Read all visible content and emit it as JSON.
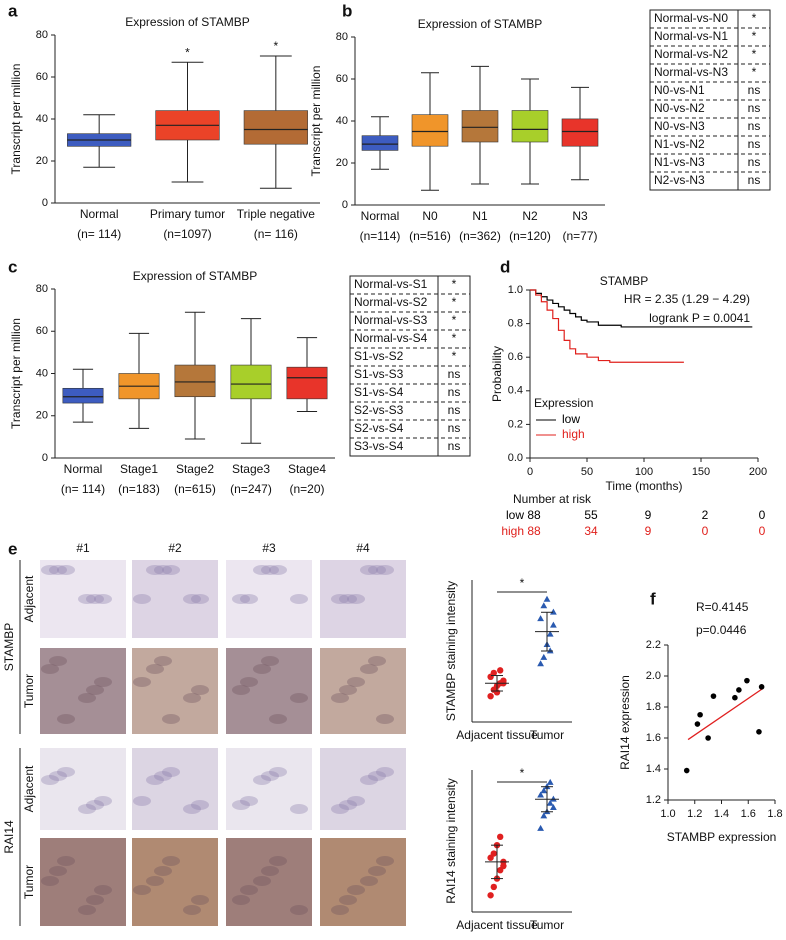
{
  "chart_data": [
    {
      "type": "box",
      "panel": "a",
      "title": "Expression of STAMBP",
      "ylabel": "Transcript per million",
      "categories": [
        "Normal",
        "Primary tumor",
        "Triple negative"
      ],
      "sample_sizes": [
        "(n= 114)",
        "(n=1097)",
        "(n= 116)"
      ],
      "whisker_low": [
        17,
        10,
        7
      ],
      "q1": [
        27,
        30,
        28
      ],
      "median": [
        30,
        37,
        35
      ],
      "q3": [
        33,
        44,
        44
      ],
      "whisker_high": [
        42,
        67,
        70
      ],
      "colors": [
        "#3d5cc0",
        "#eb4328",
        "#b36b35"
      ],
      "significance": [
        null,
        "*",
        "*"
      ],
      "ylim": [
        0,
        80
      ],
      "yticks": [
        0,
        20,
        40,
        60,
        80
      ]
    },
    {
      "type": "box",
      "panel": "b",
      "title": "Expression of STAMBP",
      "ylabel": "Transcript per million",
      "categories": [
        "Normal",
        "N0",
        "N1",
        "N2",
        "N3"
      ],
      "sample_sizes": [
        "(n=114)",
        "(n=516)",
        "(n=362)",
        "(n=120)",
        "(n=77)"
      ],
      "whisker_low": [
        17,
        7,
        10,
        10,
        12
      ],
      "q1": [
        26,
        28,
        30,
        30,
        28
      ],
      "median": [
        29,
        35,
        37,
        36,
        35
      ],
      "q3": [
        33,
        43,
        45,
        45,
        41
      ],
      "whisker_high": [
        42,
        63,
        66,
        60,
        56
      ],
      "colors": [
        "#3d5cc0",
        "#f0952a",
        "#b5773a",
        "#a8cf2a",
        "#e8342a"
      ],
      "ylim": [
        0,
        80
      ],
      "yticks": [
        0,
        20,
        40,
        60,
        80
      ],
      "comparisons": [
        [
          "Normal-vs-N0",
          "*"
        ],
        [
          "Normal-vs-N1",
          "*"
        ],
        [
          "Normal-vs-N2",
          "*"
        ],
        [
          "Normal-vs-N3",
          "*"
        ],
        [
          "N0-vs-N1",
          "ns"
        ],
        [
          "N0-vs-N2",
          "ns"
        ],
        [
          "N0-vs-N3",
          "ns"
        ],
        [
          "N1-vs-N2",
          "ns"
        ],
        [
          "N1-vs-N3",
          "ns"
        ],
        [
          "N2-vs-N3",
          "ns"
        ]
      ]
    },
    {
      "type": "box",
      "panel": "c",
      "title": "Expression of STAMBP",
      "ylabel": "Transcript per million",
      "categories": [
        "Normal",
        "Stage1",
        "Stage2",
        "Stage3",
        "Stage4"
      ],
      "sample_sizes": [
        "(n= 114)",
        "(n=183)",
        "(n=615)",
        "(n=247)",
        "(n=20)"
      ],
      "whisker_low": [
        17,
        14,
        9,
        7,
        22
      ],
      "q1": [
        26,
        28,
        29,
        28,
        28
      ],
      "median": [
        29,
        34,
        36,
        35,
        38
      ],
      "q3": [
        33,
        40,
        44,
        44,
        43
      ],
      "whisker_high": [
        42,
        59,
        69,
        66,
        57
      ],
      "colors": [
        "#3d5cc0",
        "#f0952a",
        "#b5773a",
        "#a8cf2a",
        "#e8342a"
      ],
      "ylim": [
        0,
        80
      ],
      "yticks": [
        0,
        20,
        40,
        60,
        80
      ],
      "comparisons": [
        [
          "Normal-vs-S1",
          "*"
        ],
        [
          "Normal-vs-S2",
          "*"
        ],
        [
          "Normal-vs-S3",
          "*"
        ],
        [
          "Normal-vs-S4",
          "*"
        ],
        [
          "S1-vs-S2",
          "*"
        ],
        [
          "S1-vs-S3",
          "ns"
        ],
        [
          "S1-vs-S4",
          "ns"
        ],
        [
          "S2-vs-S3",
          "ns"
        ],
        [
          "S2-vs-S4",
          "ns"
        ],
        [
          "S3-vs-S4",
          "ns"
        ]
      ]
    },
    {
      "type": "km",
      "panel": "d",
      "title": "STAMBP",
      "annotations": [
        "HR = 2.35 (1.29 − 4.29)",
        "logrank P = 0.0041"
      ],
      "xlabel": "Time (months)",
      "ylabel": "Probability",
      "legend_title": "Expression",
      "xlim": [
        0,
        200
      ],
      "xticks": [
        0,
        50,
        100,
        150,
        200
      ],
      "ylim": [
        0,
        1
      ],
      "yticks": [
        {
          "value": 0,
          "label": "0.0"
        },
        0.2,
        0.4,
        0.6,
        0.8,
        {
          "value": 1,
          "label": "1.0"
        }
      ],
      "series": [
        {
          "name": "low",
          "color": "#000000",
          "x": [
            0,
            5,
            10,
            15,
            20,
            25,
            30,
            35,
            40,
            45,
            50,
            60,
            70,
            80,
            195
          ],
          "values": [
            1,
            0.98,
            0.96,
            0.94,
            0.92,
            0.9,
            0.88,
            0.86,
            0.84,
            0.82,
            0.81,
            0.79,
            0.79,
            0.78,
            0.78
          ]
        },
        {
          "name": "high",
          "color": "#e0201c",
          "x": [
            0,
            5,
            10,
            15,
            20,
            25,
            30,
            35,
            40,
            50,
            60,
            70,
            135
          ],
          "values": [
            1,
            0.97,
            0.93,
            0.88,
            0.83,
            0.76,
            0.7,
            0.65,
            0.62,
            0.6,
            0.58,
            0.57,
            0.57
          ]
        }
      ],
      "risk_table": {
        "title": "Number at risk",
        "rows": [
          [
            88,
            55,
            9,
            2,
            0
          ],
          [
            88,
            34,
            9,
            0,
            0
          ]
        ]
      }
    },
    {
      "type": "dot",
      "ylabel": "STAMBP staining intensity",
      "ylim": [
        0.7,
        1.8
      ],
      "significance": "*",
      "series": [
        {
          "name": "Adjacent tissue",
          "color": "#e02020",
          "values": [
            0.9,
            0.95,
            0.98,
            1.0,
            1.02,
            1.05,
            1.08,
            0.93,
            1.1,
            1.0
          ],
          "mean": 1.0,
          "sd": 0.06
        },
        {
          "name": "Tumor",
          "color": "#2a5ab0",
          "values": [
            1.15,
            1.2,
            1.3,
            1.38,
            1.45,
            1.5,
            1.6,
            1.65,
            1.25,
            1.55
          ],
          "mean": 1.4,
          "sd": 0.15
        }
      ]
    },
    {
      "type": "dot",
      "ylabel": "RAI14 staining intensity",
      "ylim": [
        0.4,
        2.1
      ],
      "significance": "*",
      "series": [
        {
          "name": "Adjacent tissue",
          "color": "#e02020",
          "values": [
            0.6,
            0.7,
            0.8,
            0.9,
            1.0,
            1.05,
            1.1,
            1.2,
            1.3,
            0.95
          ],
          "mean": 1.0,
          "sd": 0.2
        },
        {
          "name": "Tumor",
          "color": "#2a5ab0",
          "values": [
            1.4,
            1.55,
            1.6,
            1.7,
            1.75,
            1.8,
            1.85,
            1.9,
            1.95,
            1.65
          ],
          "mean": 1.75,
          "sd": 0.15
        }
      ]
    },
    {
      "type": "scatter",
      "panel": "f",
      "annotations": [
        "R=0.4145",
        "p=0.0446"
      ],
      "xlabel": "STAMBP expression",
      "ylabel": "RAI14 expression",
      "xlim": [
        1,
        1.8
      ],
      "xticks": [
        {
          "value": 1,
          "label": "1.0"
        },
        1.2,
        1.4,
        1.6,
        1.8
      ],
      "ylim": [
        1.2,
        2.2
      ],
      "yticks": [
        1.2,
        1.4,
        1.6,
        1.8,
        {
          "value": 2,
          "label": "2.0"
        },
        2.2
      ],
      "x": [
        1.14,
        1.22,
        1.24,
        1.3,
        1.34,
        1.5,
        1.53,
        1.59,
        1.68,
        1.7
      ],
      "values": [
        1.39,
        1.69,
        1.75,
        1.6,
        1.87,
        1.86,
        1.91,
        1.97,
        1.64,
        1.93
      ],
      "color": "#000000",
      "fit": {
        "x": [
          1.15,
          1.71
        ],
        "values": [
          1.59,
          1.92
        ],
        "color": "#e02020"
      }
    }
  ],
  "figure_e_images": {
    "panel": "e",
    "columns": [
      "#1",
      "#2",
      "#3",
      "#4"
    ],
    "groups": [
      {
        "gene": "STAMBP",
        "rows": [
          "Adjacent",
          "Tumor"
        ]
      },
      {
        "gene": "RAI14",
        "rows": [
          "Adjacent",
          "Tumor"
        ]
      }
    ]
  }
}
